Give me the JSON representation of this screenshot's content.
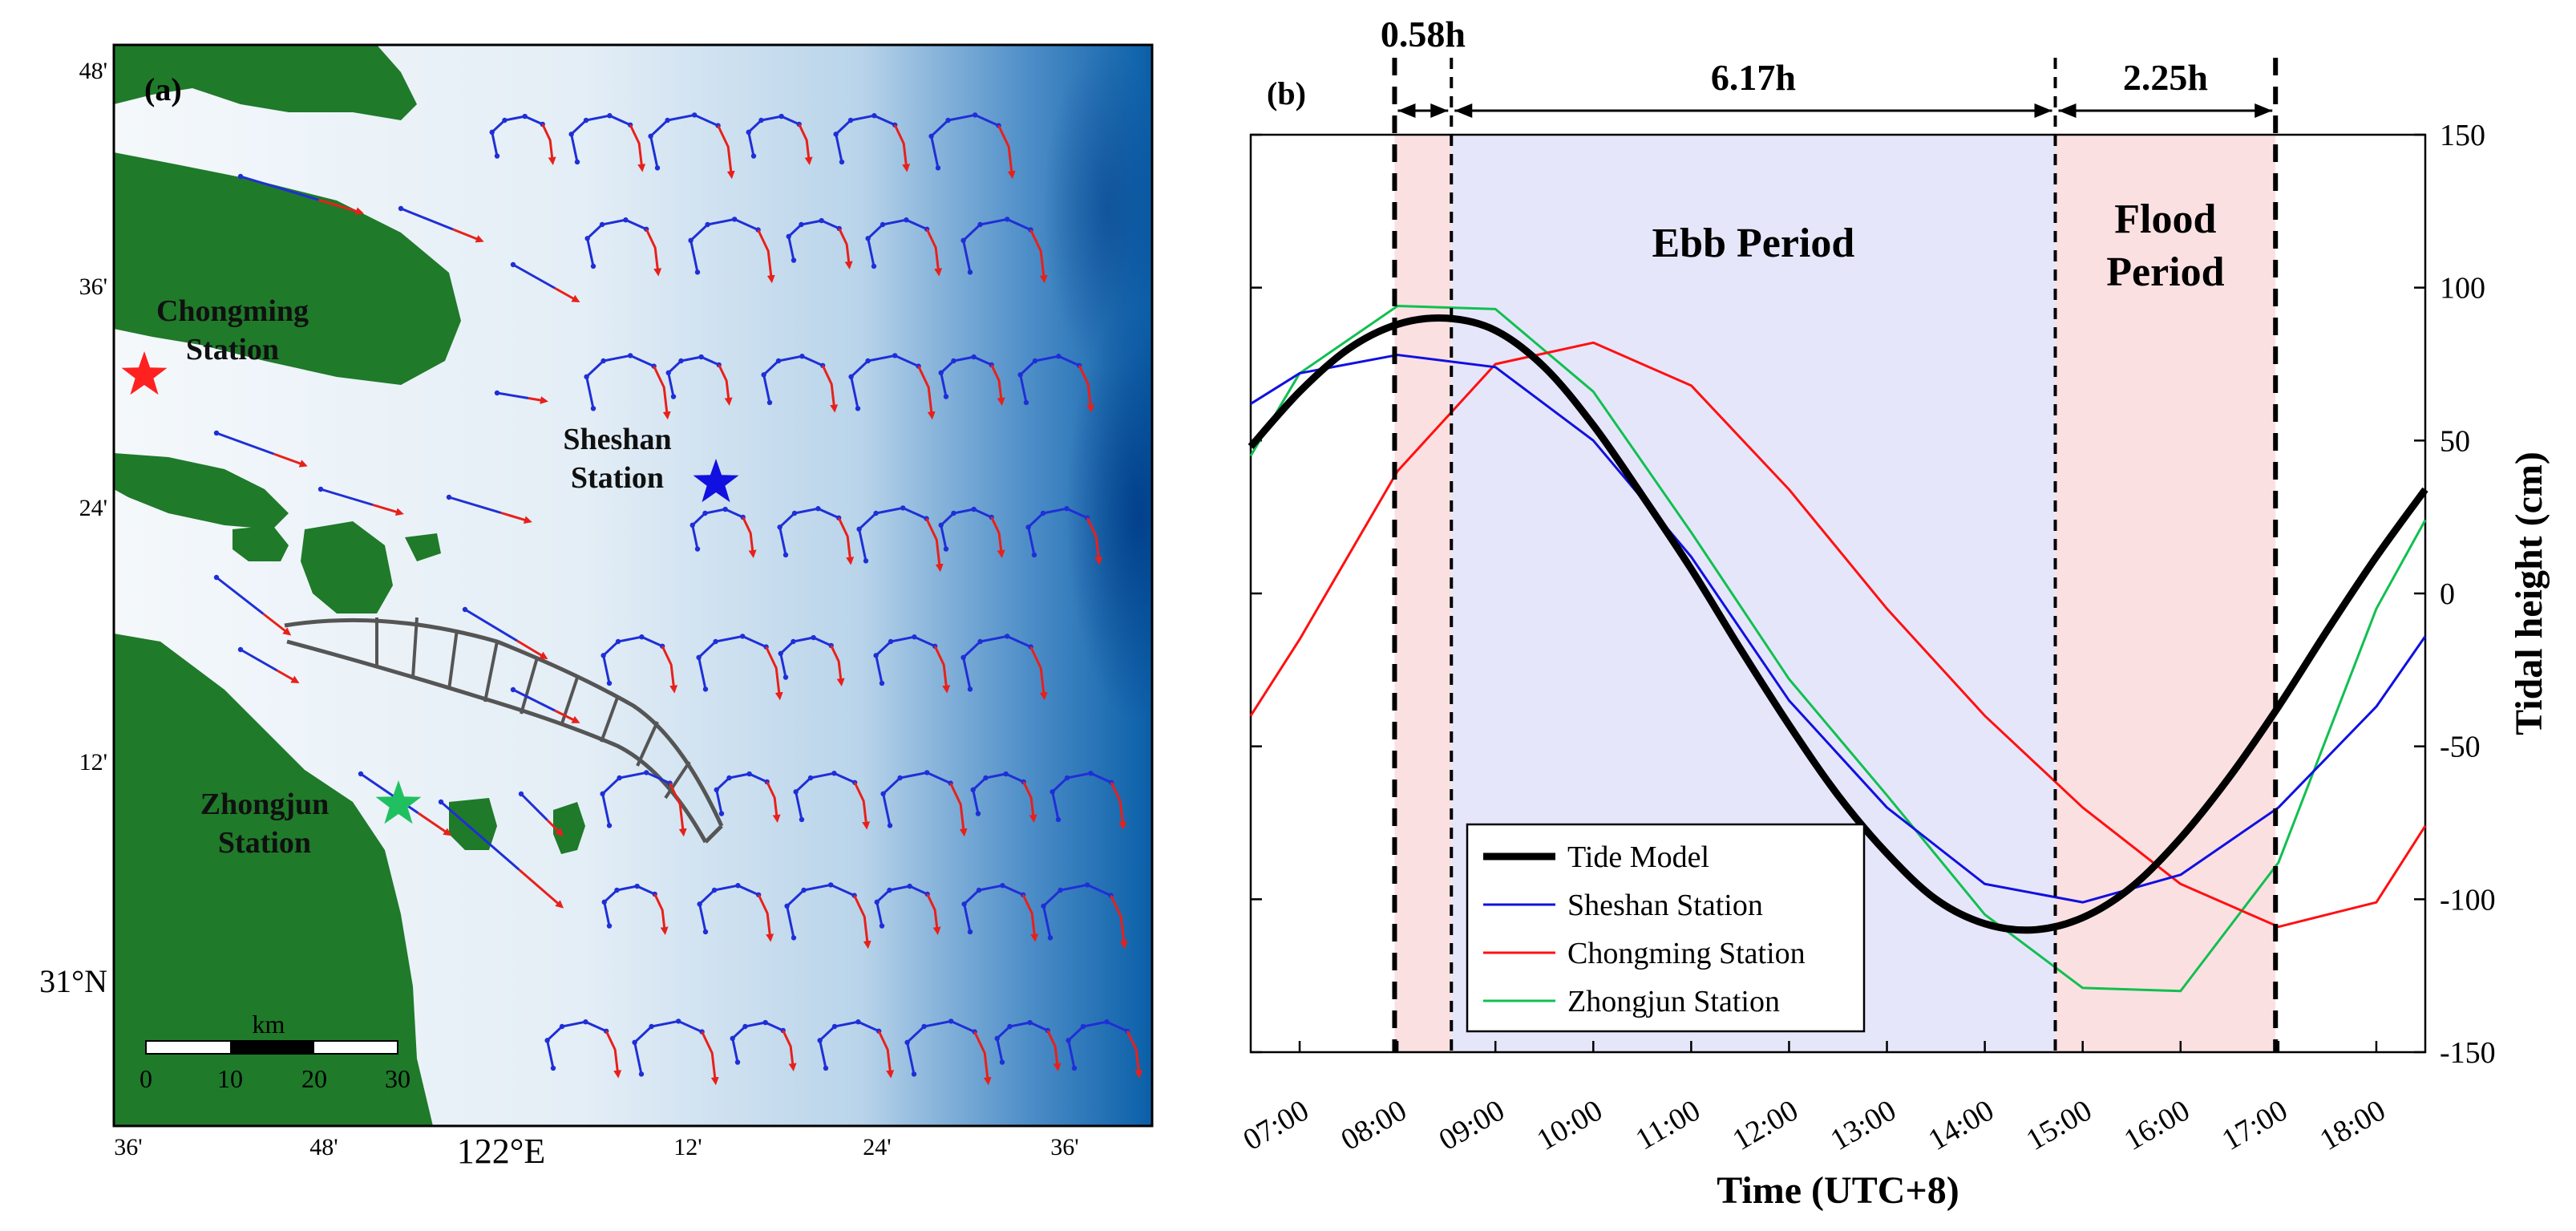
{
  "panel_a": {
    "label": "(a)",
    "lat_labels": [
      "48'",
      "36'",
      "24'",
      "12'",
      "31°N"
    ],
    "lon_labels": [
      "36'",
      "48'",
      "122°E",
      "12'",
      "24'",
      "36'"
    ],
    "stations": [
      {
        "name_line1": "Chongming",
        "name_line2": "Station",
        "color": "#ff2020"
      },
      {
        "name_line1": "Sheshan",
        "name_line2": "Station",
        "color": "#1010e0"
      },
      {
        "name_line1": "Zhongjun",
        "name_line2": "Station",
        "color": "#20c060"
      }
    ],
    "scale_bar": {
      "unit": "km",
      "ticks": [
        "0",
        "10",
        "20",
        "30"
      ]
    },
    "colors": {
      "land": "#1f7a2a",
      "water_light": "#eef5fa",
      "water_deep": "#0a5fa8",
      "track_ebb": "#1f2fd6",
      "track_flood": "#e8201a",
      "channel": "#555555"
    }
  },
  "panel_b": {
    "label": "(b)",
    "durations": [
      "0.58h",
      "6.17h",
      "2.25h"
    ],
    "period_labels": {
      "ebb": "Ebb Period",
      "flood_line1": "Flood",
      "flood_line2": "Period"
    },
    "colors": {
      "flood_band": "#fbe0e2",
      "ebb_band": "#e6e6fa"
    }
  },
  "chart_data": {
    "type": "line",
    "title": "",
    "xlabel": "Time (UTC+8)",
    "ylabel": "Tidal height (cm)",
    "x_tick_labels": [
      "07:00",
      "08:00",
      "09:00",
      "10:00",
      "11:00",
      "12:00",
      "13:00",
      "14:00",
      "15:00",
      "16:00",
      "17:00",
      "18:00"
    ],
    "x_ticks": [
      7,
      8,
      9,
      10,
      11,
      12,
      13,
      14,
      15,
      16,
      17,
      18
    ],
    "xlim": [
      6.5,
      18.5
    ],
    "ylim": [
      -150,
      150
    ],
    "y_ticks": [
      150,
      100,
      50,
      0,
      -50,
      -100,
      -150
    ],
    "y_tick_labels": [
      "150",
      "100",
      "50",
      "0",
      "-50",
      "-100",
      "-150"
    ],
    "y_axis_side": "right",
    "legend_position": "bottom-left",
    "period_boundaries_h": [
      7.97,
      8.55,
      14.72,
      16.97
    ],
    "series": [
      {
        "name": "Tide Model",
        "color": "#000000",
        "width": "thick",
        "x": [
          6.5,
          7.0,
          7.5,
          8.0,
          8.5,
          9.0,
          9.5,
          10.0,
          10.5,
          11.0,
          11.5,
          12.0,
          12.5,
          13.0,
          13.5,
          14.0,
          14.5,
          15.0,
          15.5,
          16.0,
          16.5,
          17.0,
          17.5,
          18.0,
          18.5
        ],
        "y": [
          48,
          66,
          80,
          88,
          90,
          86,
          74,
          55,
          32,
          8,
          -18,
          -43,
          -66,
          -85,
          -100,
          -108,
          -110,
          -106,
          -96,
          -80,
          -60,
          -37,
          -12,
          12,
          34
        ]
      },
      {
        "name": "Sheshan Station",
        "color": "#1010e0",
        "width": "thin",
        "x": [
          6.5,
          7.0,
          8.0,
          9.0,
          10.0,
          11.0,
          12.0,
          13.0,
          14.0,
          15.0,
          16.0,
          17.0,
          18.0,
          18.5
        ],
        "y": [
          62,
          72,
          78,
          74,
          50,
          12,
          -35,
          -70,
          -95,
          -101,
          -92,
          -70,
          -37,
          -14
        ]
      },
      {
        "name": "Chongming Station",
        "color": "#ff1010",
        "width": "thin",
        "x": [
          6.5,
          7.0,
          8.0,
          9.0,
          10.0,
          11.0,
          12.0,
          13.0,
          14.0,
          15.0,
          16.0,
          17.0,
          18.0,
          18.5
        ],
        "y": [
          -40,
          -15,
          40,
          75,
          82,
          68,
          34,
          -5,
          -40,
          -70,
          -95,
          -109,
          -101,
          -76
        ]
      },
      {
        "name": "Zhongjun Station",
        "color": "#10c050",
        "width": "thin",
        "x": [
          6.5,
          7.0,
          8.0,
          9.0,
          10.0,
          11.0,
          12.0,
          13.0,
          14.0,
          15.0,
          16.0,
          17.0,
          18.0,
          18.5
        ],
        "y": [
          45,
          72,
          94,
          93,
          66,
          20,
          -28,
          -66,
          -105,
          -129,
          -130,
          -88,
          -5,
          24
        ]
      }
    ]
  }
}
